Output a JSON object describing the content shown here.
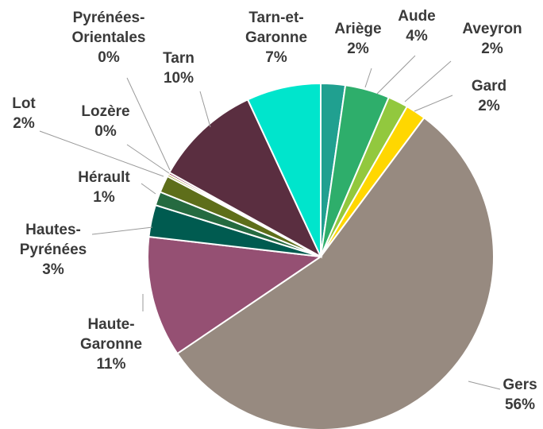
{
  "chart_data": {
    "type": "pie",
    "title": "",
    "slices": [
      {
        "name": "Ariège",
        "label": "Ariège",
        "value_label": "2%",
        "value": 2.3,
        "color": "#20A090"
      },
      {
        "name": "Aude",
        "label": "Aude",
        "value_label": "4%",
        "value": 4.2,
        "color": "#2EAE6B"
      },
      {
        "name": "Aveyron",
        "label": "Aveyron",
        "value_label": "2%",
        "value": 1.9,
        "color": "#92C83E"
      },
      {
        "name": "Gard",
        "label": "Gard",
        "value_label": "2%",
        "value": 1.9,
        "color": "#FFD700"
      },
      {
        "name": "Gers",
        "label": "Gers",
        "value_label": "56%",
        "value": 55.9,
        "color": "#978A80"
      },
      {
        "name": "Haute-Garonne",
        "label": "Haute-\nGaronne",
        "value_label": "11%",
        "value": 11.4,
        "color": "#955073"
      },
      {
        "name": "Hautes-Pyrénées",
        "label": "Hautes-\nPyrénées",
        "value_label": "3%",
        "value": 3.0,
        "color": "#005B50"
      },
      {
        "name": "Hérault",
        "label": "Hérault",
        "value_label": "1%",
        "value": 1.3,
        "color": "#256A40"
      },
      {
        "name": "Lot",
        "label": "Lot",
        "value_label": "2%",
        "value": 1.6,
        "color": "#5E6E1A"
      },
      {
        "name": "Lozère",
        "label": "Lozère",
        "value_label": "0%",
        "value": 0.2,
        "color": "#8C8C00"
      },
      {
        "name": "Pyrénées-Orientales",
        "label": "Pyrénées-\nOrientales",
        "value_label": "0%",
        "value": 0.2,
        "color": "#7B0D2A"
      },
      {
        "name": "Tarn",
        "label": "Tarn",
        "value_label": "10%",
        "value": 10.1,
        "color": "#5A2E40"
      },
      {
        "name": "Tarn-et-Garonne",
        "label": "Tarn-et-\nGaronne",
        "value_label": "7%",
        "value": 7.0,
        "color": "#00E5CC"
      }
    ]
  }
}
